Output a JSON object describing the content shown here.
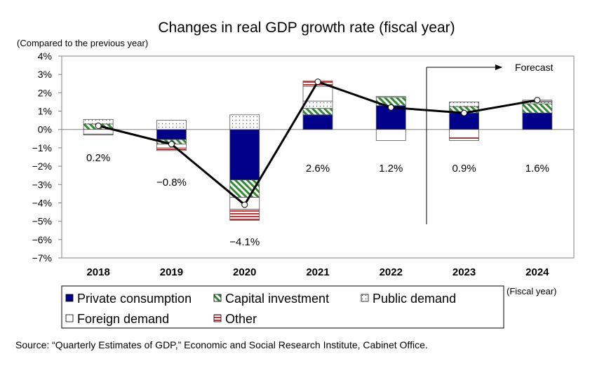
{
  "chart_data": {
    "type": "bar",
    "title": "Changes in real GDP growth rate (fiscal year)",
    "y_unit_label": "(Compared to the previous year)",
    "x_unit_label": "(Fiscal year)",
    "ylim": [
      -7,
      4
    ],
    "y_ticks": [
      "4%",
      "3%",
      "2%",
      "1%",
      "0%",
      "−1%",
      "−2%",
      "−3%",
      "−4%",
      "−5%",
      "−6%",
      "−7%"
    ],
    "y_tick_values": [
      4,
      3,
      2,
      1,
      0,
      -1,
      -2,
      -3,
      -4,
      -5,
      -6,
      -7
    ],
    "categories": [
      "2018",
      "2019",
      "2020",
      "2021",
      "2022",
      "2023",
      "2024"
    ],
    "series": [
      {
        "name": "Private consumption",
        "values": [
          0.0,
          -0.55,
          -2.75,
          0.8,
          1.3,
          0.9,
          0.9
        ]
      },
      {
        "name": "Capital investment",
        "values": [
          0.3,
          -0.25,
          -0.95,
          0.35,
          0.45,
          0.35,
          0.5
        ]
      },
      {
        "name": "Public demand",
        "values": [
          0.25,
          0.5,
          0.8,
          0.4,
          0.0,
          0.25,
          0.1
        ]
      },
      {
        "name": "Foreign demand",
        "values": [
          -0.25,
          -0.2,
          -0.65,
          0.8,
          -0.6,
          -0.45,
          0.05
        ]
      },
      {
        "name": "Other",
        "values": [
          -0.05,
          -0.15,
          -0.6,
          0.3,
          0.05,
          -0.15,
          0.05
        ]
      }
    ],
    "line": {
      "values": [
        0.2,
        -0.8,
        -4.1,
        2.6,
        1.2,
        0.9,
        1.6
      ]
    },
    "data_labels": [
      "0.2%",
      "−0.8%",
      "−4.1%",
      "2.6%",
      "1.2%",
      "0.9%",
      "1.6%"
    ],
    "forecast_label": "Forecast",
    "forecast_from": "2023",
    "colors": {
      "private": "#00008b",
      "capital_stripe": "#2e8b2e",
      "public_dot": "#555555",
      "other_stripe": "#d03030",
      "line": "#000000"
    },
    "legend_position": "bottom"
  },
  "source_text": "Source: “Quarterly Estimates of GDP,” Economic and Social Research Institute, Cabinet Office."
}
